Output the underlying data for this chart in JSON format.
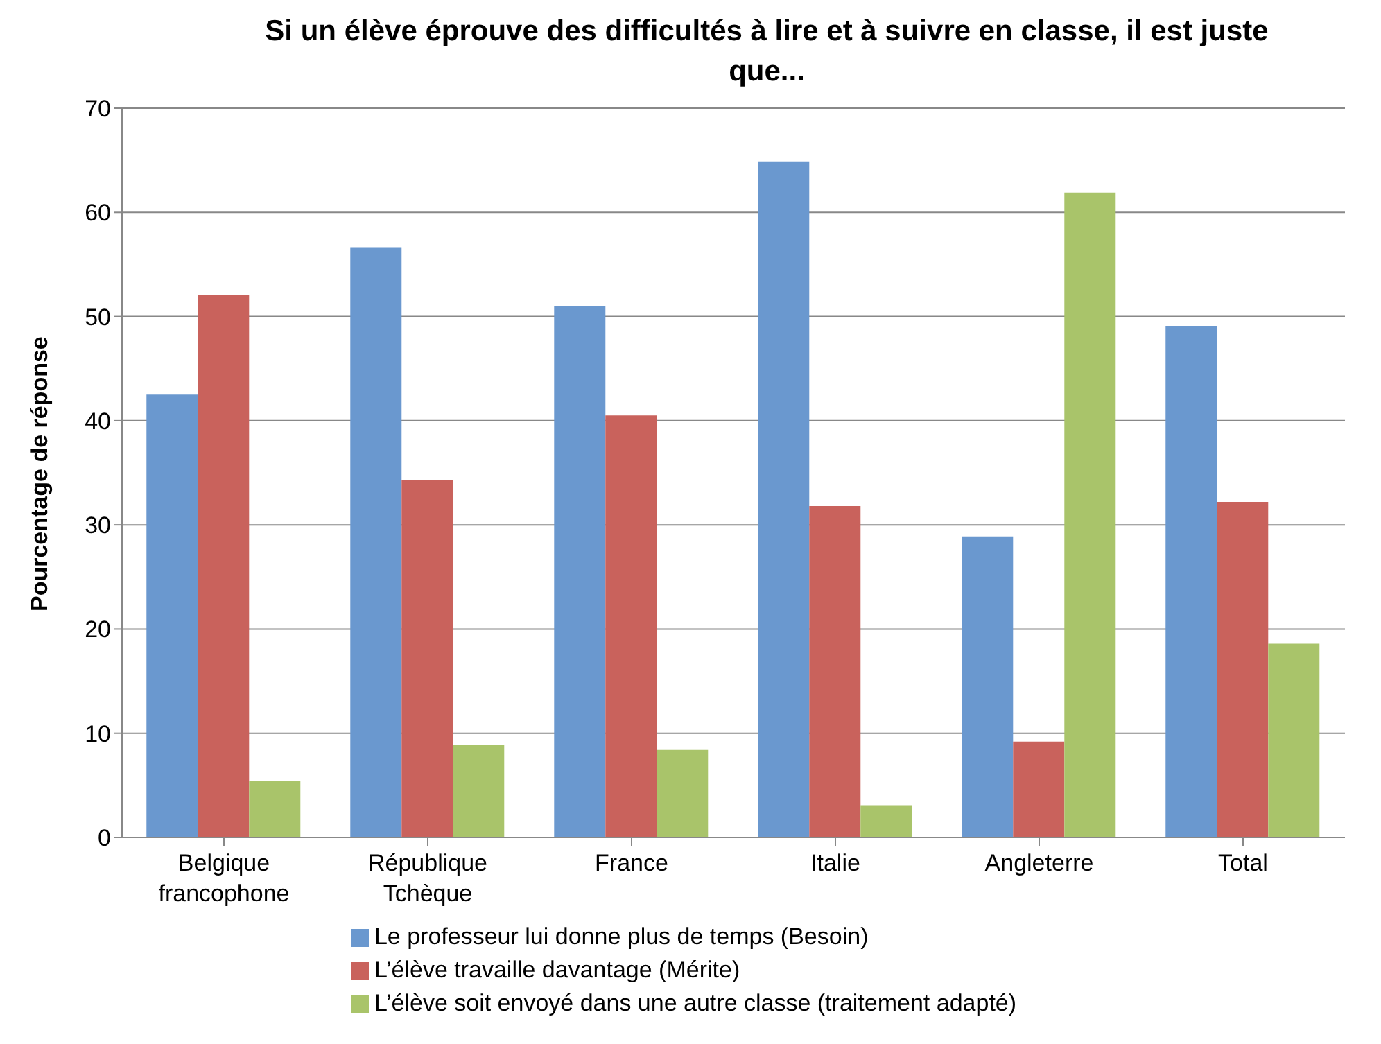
{
  "chart_data": {
    "type": "bar",
    "title": "Si un élève éprouve des difficultés à lire et à suivre en classe, il est juste que...",
    "ylabel": "Pourcentage de réponse",
    "categories": [
      "Belgique francophone",
      "République Tchèque",
      "France",
      "Italie",
      "Angleterre",
      "Total"
    ],
    "series": [
      {
        "name": "Le professeur lui donne plus de temps (Besoin)",
        "color": "#6a98cf",
        "values": [
          42.5,
          56.6,
          51.0,
          64.9,
          28.9,
          49.1
        ]
      },
      {
        "name": "L’élève travaille davantage (Mérite)",
        "color": "#c9625c",
        "values": [
          52.1,
          34.3,
          40.5,
          31.8,
          9.2,
          32.2
        ]
      },
      {
        "name": "L’élève soit envoyé dans une autre classe (traitement adapté)",
        "color": "#a9c46a",
        "values": [
          5.4,
          8.9,
          8.4,
          3.1,
          61.9,
          18.6
        ]
      }
    ],
    "ylim": [
      0,
      70
    ],
    "yticks": [
      0,
      10,
      20,
      30,
      40,
      50,
      60,
      70
    ],
    "grid": "y",
    "legend": "bottom"
  }
}
